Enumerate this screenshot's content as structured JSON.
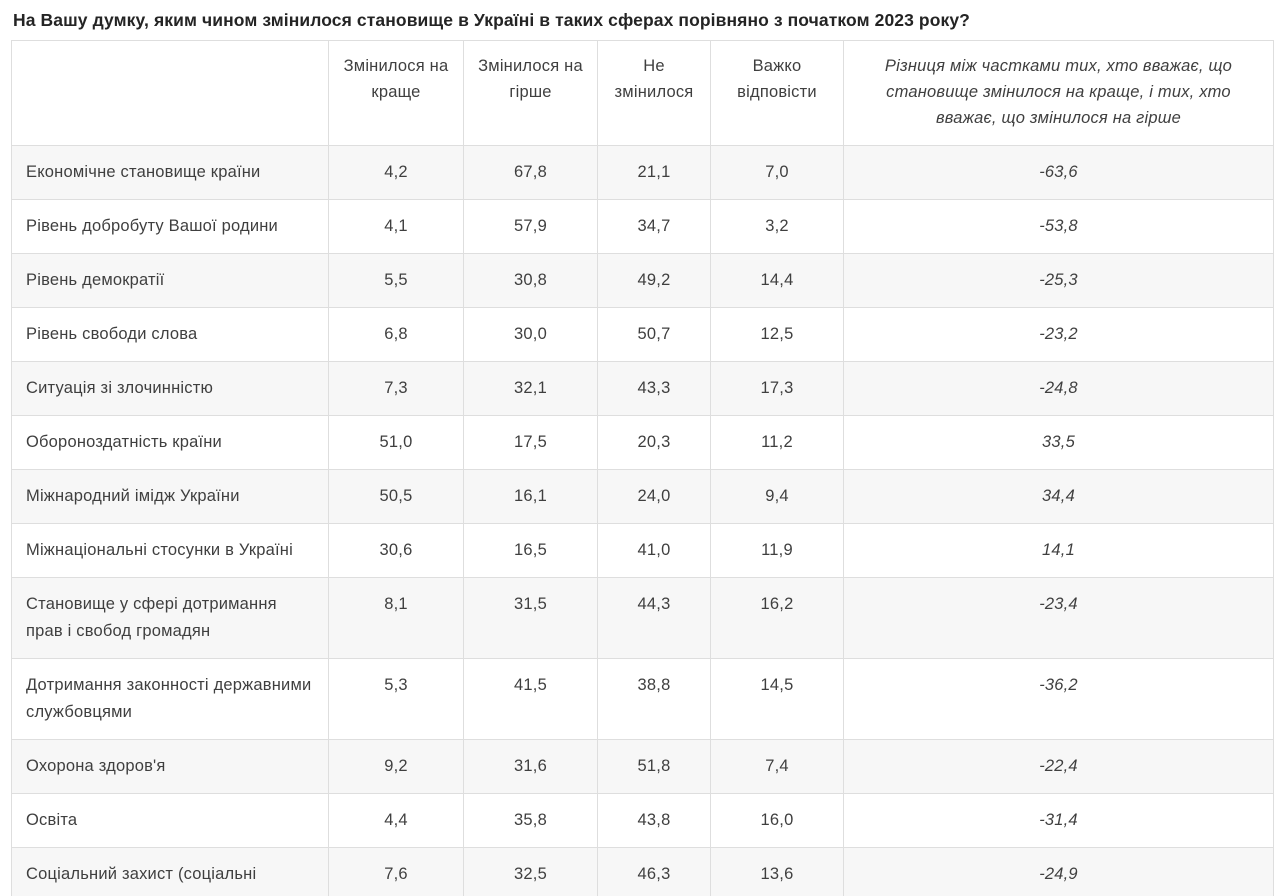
{
  "chart_data": {
    "type": "table",
    "title": "На Вашу думку, яким чином змінилося становище в Україні в таких сферах порівняно з початком 2023 року?",
    "columns": [
      "",
      "Змінилося на краще",
      "Змінилося на гірше",
      "Не змінилося",
      "Важко відповісти",
      "Різниця між частками тих, хто вважає, що становище змінилося на краще, і тих, хто вважає, що змінилося на гірше"
    ],
    "rows": [
      {
        "label": "Економічне становище країни",
        "values": [
          "4,2",
          "67,8",
          "21,1",
          "7,0"
        ],
        "diff": "-63,6"
      },
      {
        "label": "Рівень добробуту Вашої родини",
        "values": [
          "4,1",
          "57,9",
          "34,7",
          "3,2"
        ],
        "diff": "-53,8"
      },
      {
        "label": "Рівень демократії",
        "values": [
          "5,5",
          "30,8",
          "49,2",
          "14,4"
        ],
        "diff": "-25,3"
      },
      {
        "label": "Рівень свободи слова",
        "values": [
          "6,8",
          "30,0",
          "50,7",
          "12,5"
        ],
        "diff": "-23,2"
      },
      {
        "label": "Ситуація зі злочинністю",
        "values": [
          "7,3",
          "32,1",
          "43,3",
          "17,3"
        ],
        "diff": "-24,8"
      },
      {
        "label": "Обороноздатність країни",
        "values": [
          "51,0",
          "17,5",
          "20,3",
          "11,2"
        ],
        "diff": "33,5"
      },
      {
        "label": "Міжнародний імідж України",
        "values": [
          "50,5",
          "16,1",
          "24,0",
          "9,4"
        ],
        "diff": "34,4"
      },
      {
        "label": "Міжнаціональні стосунки в Україні",
        "values": [
          "30,6",
          "16,5",
          "41,0",
          "11,9"
        ],
        "diff": "14,1"
      },
      {
        "label": "Становище у сфері дотримання прав і свобод громадян",
        "values": [
          "8,1",
          "31,5",
          "44,3",
          "16,2"
        ],
        "diff": "-23,4"
      },
      {
        "label": "Дотримання законності державними службовцями",
        "values": [
          "5,3",
          "41,5",
          "38,8",
          "14,5"
        ],
        "diff": "-36,2"
      },
      {
        "label": "Охорона здоров'я",
        "values": [
          "9,2",
          "31,6",
          "51,8",
          "7,4"
        ],
        "diff": "-22,4"
      },
      {
        "label": "Освіта",
        "values": [
          "4,4",
          "35,8",
          "43,8",
          "16,0"
        ],
        "diff": "-31,4"
      },
      {
        "label": "Соціальний захист (соціальні",
        "values": [
          "7,6",
          "32,5",
          "46,3",
          "13,6"
        ],
        "diff": "-24,9"
      }
    ]
  },
  "colors": {
    "row_stripe": "#f7f7f7",
    "border": "#dedede",
    "body_text": "#3f3f3f",
    "title_text": "#242424"
  }
}
